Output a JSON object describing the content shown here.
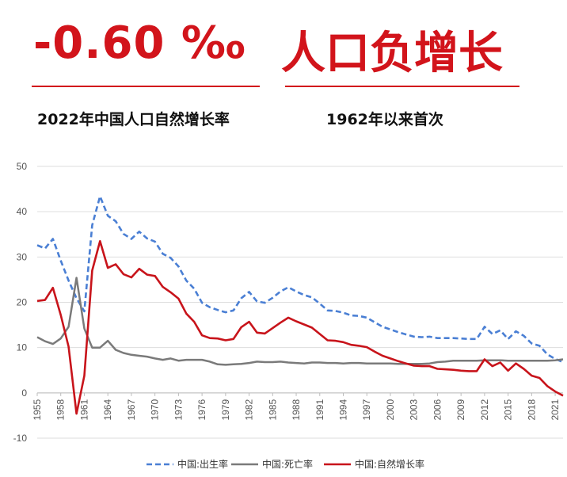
{
  "headline": {
    "left": "-0.60 ‰",
    "right": "人口负增长"
  },
  "subtitle": {
    "left": "2022年中国人口自然增长率",
    "right": "1962年以来首次"
  },
  "colors": {
    "accent": "#d2141b",
    "birth": "#4a7fd4",
    "death": "#7a7a7a",
    "natural": "#c8141b"
  },
  "chart_data": {
    "type": "line",
    "title": "",
    "xlabel": "",
    "ylabel": "",
    "ylim": [
      -10,
      50
    ],
    "yticks": [
      -10,
      0,
      10,
      20,
      30,
      40,
      50
    ],
    "xlim": [
      1955,
      2022
    ],
    "xticks": [
      1955,
      1958,
      1961,
      1964,
      1967,
      1970,
      1973,
      1976,
      1979,
      1982,
      1985,
      1988,
      1991,
      1994,
      1997,
      2000,
      2003,
      2006,
      2009,
      2012,
      2015,
      2018,
      2021
    ],
    "grid": "horizontal",
    "legend": "bottom",
    "series": [
      {
        "name": "中国:出生率",
        "style": "dashed",
        "x": [
          1955,
          1956,
          1957,
          1958,
          1959,
          1960,
          1961,
          1962,
          1963,
          1964,
          1965,
          1966,
          1967,
          1968,
          1969,
          1970,
          1971,
          1972,
          1973,
          1974,
          1975,
          1976,
          1977,
          1978,
          1979,
          1980,
          1981,
          1982,
          1983,
          1984,
          1985,
          1986,
          1987,
          1988,
          1989,
          1990,
          1991,
          1992,
          1993,
          1994,
          1995,
          1996,
          1997,
          1998,
          1999,
          2000,
          2001,
          2002,
          2003,
          2004,
          2005,
          2006,
          2007,
          2008,
          2009,
          2010,
          2011,
          2012,
          2013,
          2014,
          2015,
          2016,
          2017,
          2018,
          2019,
          2020,
          2021,
          2022
        ],
        "values": [
          32.6,
          31.9,
          34.0,
          29.2,
          24.8,
          20.9,
          18.0,
          37.0,
          43.4,
          39.1,
          37.9,
          35.1,
          34.0,
          35.6,
          34.1,
          33.4,
          30.7,
          29.8,
          27.9,
          24.8,
          23.0,
          19.9,
          18.9,
          18.3,
          17.8,
          18.2,
          20.9,
          22.3,
          20.2,
          19.9,
          21.0,
          22.4,
          23.3,
          22.4,
          21.6,
          21.1,
          19.7,
          18.2,
          18.1,
          17.7,
          17.1,
          17.0,
          16.6,
          15.6,
          14.6,
          14.0,
          13.4,
          12.9,
          12.4,
          12.3,
          12.4,
          12.1,
          12.1,
          12.1,
          12.0,
          11.9,
          11.9,
          14.6,
          13.0,
          13.8,
          11.9,
          13.6,
          12.6,
          10.9,
          10.4,
          8.5,
          7.5,
          6.8
        ]
      },
      {
        "name": "中国:死亡率",
        "style": "solid",
        "x": [
          1955,
          1956,
          1957,
          1958,
          1959,
          1960,
          1961,
          1962,
          1963,
          1964,
          1965,
          1966,
          1967,
          1968,
          1969,
          1970,
          1971,
          1972,
          1973,
          1974,
          1975,
          1976,
          1977,
          1978,
          1979,
          1980,
          1981,
          1982,
          1983,
          1984,
          1985,
          1986,
          1987,
          1988,
          1989,
          1990,
          1991,
          1992,
          1993,
          1994,
          1995,
          1996,
          1997,
          1998,
          1999,
          2000,
          2001,
          2002,
          2003,
          2004,
          2005,
          2006,
          2007,
          2008,
          2009,
          2010,
          2011,
          2012,
          2013,
          2014,
          2015,
          2016,
          2017,
          2018,
          2019,
          2020,
          2021,
          2022
        ],
        "values": [
          12.3,
          11.4,
          10.8,
          12.0,
          14.6,
          25.4,
          14.2,
          10.0,
          10.0,
          11.5,
          9.5,
          8.8,
          8.4,
          8.2,
          8.0,
          7.6,
          7.3,
          7.6,
          7.1,
          7.3,
          7.3,
          7.3,
          6.9,
          6.3,
          6.2,
          6.3,
          6.4,
          6.6,
          6.9,
          6.8,
          6.8,
          6.9,
          6.7,
          6.6,
          6.5,
          6.7,
          6.7,
          6.6,
          6.6,
          6.5,
          6.6,
          6.6,
          6.5,
          6.5,
          6.5,
          6.5,
          6.4,
          6.4,
          6.4,
          6.4,
          6.5,
          6.8,
          6.9,
          7.1,
          7.1,
          7.1,
          7.1,
          7.2,
          7.2,
          7.2,
          7.1,
          7.1,
          7.1,
          7.1,
          7.1,
          7.1,
          7.2,
          7.4
        ]
      },
      {
        "name": "中国:自然增长率",
        "style": "solid",
        "x": [
          1955,
          1956,
          1957,
          1958,
          1959,
          1960,
          1961,
          1962,
          1963,
          1964,
          1965,
          1966,
          1967,
          1968,
          1969,
          1970,
          1971,
          1972,
          1973,
          1974,
          1975,
          1976,
          1977,
          1978,
          1979,
          1980,
          1981,
          1982,
          1983,
          1984,
          1985,
          1986,
          1987,
          1988,
          1989,
          1990,
          1991,
          1992,
          1993,
          1994,
          1995,
          1996,
          1997,
          1998,
          1999,
          2000,
          2001,
          2002,
          2003,
          2004,
          2005,
          2006,
          2007,
          2008,
          2009,
          2010,
          2011,
          2012,
          2013,
          2014,
          2015,
          2016,
          2017,
          2018,
          2019,
          2020,
          2021,
          2022
        ],
        "values": [
          20.3,
          20.5,
          23.2,
          17.2,
          10.2,
          -4.6,
          3.8,
          27.0,
          33.5,
          27.6,
          28.4,
          26.2,
          25.5,
          27.4,
          26.1,
          25.8,
          23.4,
          22.2,
          20.8,
          17.5,
          15.7,
          12.7,
          12.1,
          12.0,
          11.6,
          11.9,
          14.5,
          15.7,
          13.3,
          13.1,
          14.3,
          15.5,
          16.6,
          15.8,
          15.1,
          14.4,
          13.0,
          11.6,
          11.5,
          11.2,
          10.6,
          10.4,
          10.1,
          9.1,
          8.2,
          7.6,
          7.0,
          6.5,
          6.0,
          5.9,
          5.9,
          5.3,
          5.2,
          5.1,
          4.9,
          4.8,
          4.8,
          7.4,
          5.9,
          6.7,
          4.9,
          6.5,
          5.3,
          3.8,
          3.3,
          1.5,
          0.3,
          -0.6
        ]
      }
    ]
  }
}
